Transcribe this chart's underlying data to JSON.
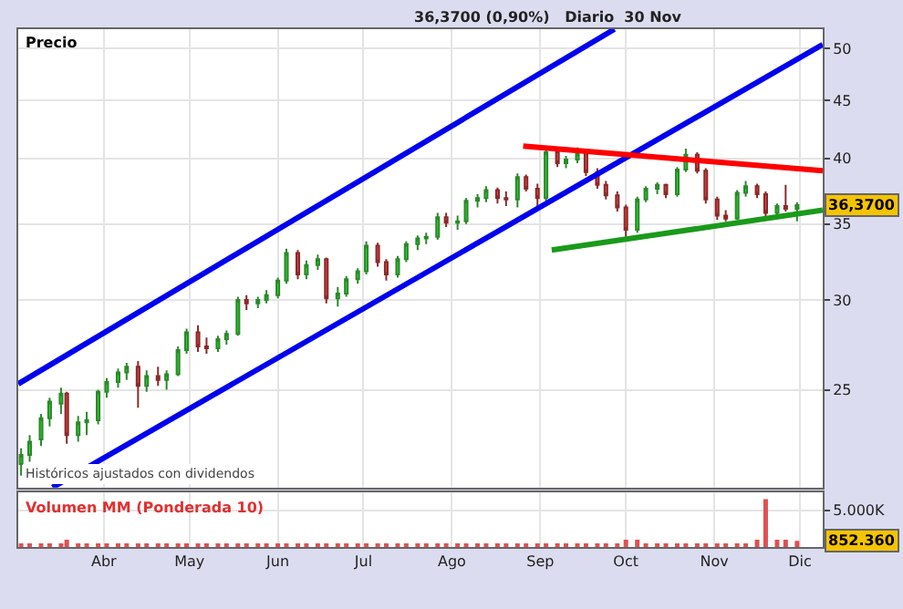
{
  "chart_data": [
    {
      "type": "candlestick",
      "title": "36,3700 (0,90%)   Diario  30 Nov",
      "annotations": [
        "Precio",
        "Históricos ajustados con dividendos",
        {
          "text": "36,3700",
          "y": 36.37
        }
      ],
      "x": [
        "--03-03",
        "--03-06",
        "--03-10",
        "--03-13",
        "--03-17",
        "--03-19",
        "--03-23",
        "--03-26",
        "--03-30",
        "--04-02",
        "--04-06",
        "--04-09",
        "--04-13",
        "--04-16",
        "--04-20",
        "--04-23",
        "--04-27",
        "--04-30",
        "--05-04",
        "--05-07",
        "--05-11",
        "--05-14",
        "--05-18",
        "--05-21",
        "--05-25",
        "--05-28",
        "--06-01",
        "--06-04",
        "--06-08",
        "--06-11",
        "--06-15",
        "--06-18",
        "--06-22",
        "--06-25",
        "--06-29",
        "--07-02",
        "--07-06",
        "--07-09",
        "--07-13",
        "--07-16",
        "--07-20",
        "--07-23",
        "--07-27",
        "--07-30",
        "--08-03",
        "--08-06",
        "--08-10",
        "--08-13",
        "--08-17",
        "--08-20",
        "--08-24",
        "--08-27",
        "--08-31",
        "--09-03",
        "--09-07",
        "--09-10",
        "--09-14",
        "--09-17",
        "--09-21",
        "--09-24",
        "--09-28",
        "--10-01",
        "--10-05",
        "--10-08",
        "--10-12",
        "--10-15",
        "--10-19",
        "--10-22",
        "--10-26",
        "--10-29",
        "--11-02",
        "--11-05",
        "--11-09",
        "--11-12",
        "--11-16",
        "--11-19",
        "--11-23",
        "--11-26",
        "--11-30"
      ],
      "ohlc": [
        [
          21.5,
          22.2,
          21.0,
          21.9
        ],
        [
          21.9,
          22.8,
          21.6,
          22.5
        ],
        [
          22.6,
          23.8,
          22.3,
          23.6
        ],
        [
          23.6,
          24.6,
          23.2,
          24.4
        ],
        [
          24.3,
          25.1,
          23.8,
          24.8
        ],
        [
          24.8,
          24.9,
          22.4,
          22.8
        ],
        [
          22.8,
          23.7,
          22.5,
          23.4
        ],
        [
          23.4,
          23.9,
          22.8,
          23.5
        ],
        [
          23.5,
          25.0,
          23.3,
          24.9
        ],
        [
          24.9,
          25.6,
          24.6,
          25.4
        ],
        [
          25.4,
          26.1,
          25.1,
          25.9
        ],
        [
          25.9,
          26.4,
          25.5,
          26.2
        ],
        [
          26.2,
          26.5,
          24.1,
          25.2
        ],
        [
          25.2,
          26.0,
          24.9,
          25.7
        ],
        [
          25.7,
          26.2,
          25.2,
          25.5
        ],
        [
          25.5,
          26.0,
          25.0,
          25.8
        ],
        [
          25.8,
          27.3,
          25.7,
          27.1
        ],
        [
          27.1,
          28.3,
          26.9,
          28.1
        ],
        [
          28.1,
          28.5,
          27.0,
          27.3
        ],
        [
          27.3,
          27.8,
          26.9,
          27.2
        ],
        [
          27.2,
          27.9,
          27.0,
          27.7
        ],
        [
          27.7,
          28.2,
          27.4,
          28.0
        ],
        [
          28.0,
          30.2,
          27.9,
          30.0
        ],
        [
          30.0,
          30.3,
          29.4,
          29.8
        ],
        [
          29.8,
          30.2,
          29.5,
          30.0
        ],
        [
          30.0,
          30.6,
          29.8,
          30.3
        ],
        [
          30.3,
          31.4,
          30.1,
          31.2
        ],
        [
          31.2,
          33.3,
          31.0,
          33.0
        ],
        [
          33.0,
          33.2,
          31.3,
          31.6
        ],
        [
          31.6,
          32.5,
          31.3,
          32.2
        ],
        [
          32.2,
          32.9,
          31.9,
          32.6
        ],
        [
          32.6,
          32.7,
          29.8,
          30.1
        ],
        [
          30.1,
          30.8,
          29.6,
          30.4
        ],
        [
          30.4,
          31.5,
          30.2,
          31.3
        ],
        [
          31.3,
          32.0,
          31.0,
          31.8
        ],
        [
          31.8,
          33.8,
          31.6,
          33.5
        ],
        [
          33.5,
          33.7,
          32.1,
          32.4
        ],
        [
          32.4,
          32.6,
          31.2,
          31.6
        ],
        [
          31.6,
          32.8,
          31.4,
          32.6
        ],
        [
          32.6,
          33.8,
          32.4,
          33.6
        ],
        [
          33.6,
          34.2,
          33.2,
          34.0
        ],
        [
          34.0,
          34.4,
          33.6,
          34.1
        ],
        [
          34.1,
          35.8,
          33.9,
          35.5
        ],
        [
          35.5,
          35.8,
          34.8,
          35.1
        ],
        [
          35.1,
          35.6,
          34.6,
          35.2
        ],
        [
          35.2,
          36.9,
          35.0,
          36.7
        ],
        [
          36.7,
          37.2,
          36.2,
          36.9
        ],
        [
          36.9,
          37.8,
          36.6,
          37.5
        ],
        [
          37.5,
          37.7,
          36.5,
          36.9
        ],
        [
          36.9,
          37.4,
          36.3,
          36.8
        ],
        [
          36.8,
          38.8,
          36.2,
          38.5
        ],
        [
          38.5,
          38.7,
          37.4,
          37.6
        ],
        [
          37.6,
          38.0,
          36.3,
          36.9
        ],
        [
          36.9,
          40.9,
          36.7,
          40.5
        ],
        [
          40.5,
          40.8,
          39.3,
          39.6
        ],
        [
          39.6,
          40.2,
          39.2,
          39.9
        ],
        [
          39.9,
          40.9,
          39.6,
          40.4
        ],
        [
          40.4,
          40.6,
          38.6,
          38.9
        ],
        [
          38.9,
          39.2,
          37.6,
          37.9
        ],
        [
          37.9,
          38.2,
          36.8,
          37.1
        ],
        [
          37.1,
          37.4,
          35.9,
          36.2
        ],
        [
          36.2,
          36.4,
          34.1,
          34.6
        ],
        [
          34.6,
          37.0,
          34.4,
          36.8
        ],
        [
          36.8,
          37.8,
          36.6,
          37.6
        ],
        [
          37.6,
          38.1,
          37.2,
          37.9
        ],
        [
          37.9,
          38.0,
          36.9,
          37.2
        ],
        [
          37.2,
          39.3,
          37.0,
          39.1
        ],
        [
          39.1,
          40.8,
          38.9,
          40.3
        ],
        [
          40.3,
          40.5,
          38.8,
          39.0
        ],
        [
          39.0,
          39.2,
          36.5,
          36.8
        ],
        [
          36.8,
          37.0,
          35.3,
          35.6
        ],
        [
          35.6,
          36.0,
          35.2,
          35.4
        ],
        [
          35.4,
          37.5,
          35.3,
          37.3
        ],
        [
          37.3,
          38.2,
          37.0,
          37.8
        ],
        [
          37.8,
          38.0,
          36.9,
          37.2
        ],
        [
          37.2,
          37.4,
          35.5,
          35.8
        ],
        [
          35.8,
          36.5,
          35.6,
          36.3
        ],
        [
          36.3,
          37.9,
          35.9,
          36.1
        ],
        [
          36.1,
          36.6,
          35.2,
          36.37
        ]
      ],
      "series": [
        {
          "type": "line",
          "color": "#0000ee",
          "x": [
            "--03-02",
            "--09-27"
          ],
          "values": [
            25.3,
            52.0
          ]
        },
        {
          "type": "line",
          "color": "#0000ee",
          "x": [
            "--03-14",
            "--12-09"
          ],
          "values": [
            20.5,
            50.4
          ]
        },
        {
          "type": "line",
          "color": "#ff0000",
          "x": [
            "--08-26",
            "--12-09"
          ],
          "values": [
            41.0,
            39.0
          ]
        },
        {
          "type": "line",
          "color": "#1a9a1a",
          "x": [
            "--09-05",
            "--12-09"
          ],
          "values": [
            33.2,
            36.0
          ]
        }
      ],
      "xlim": [
        "--03-02",
        "--12-09"
      ],
      "xticks": [
        {
          "value": "--04-01",
          "label": "Abr"
        },
        {
          "value": "--05-01",
          "label": "May"
        },
        {
          "value": "--06-01",
          "label": "Jun"
        },
        {
          "value": "--07-01",
          "label": "Jul"
        },
        {
          "value": "--08-01",
          "label": "Ago"
        },
        {
          "value": "--09-01",
          "label": "Sep"
        },
        {
          "value": "--10-01",
          "label": "Oct"
        },
        {
          "value": "--11-01",
          "label": "Nov"
        },
        {
          "value": "--12-01",
          "label": "Dic"
        }
      ],
      "ylim": [
        20.5,
        52
      ],
      "yticks": [
        25,
        30,
        35,
        40,
        45,
        50
      ],
      "log": true,
      "grid": true,
      "tick_labels": "y"
    },
    {
      "type": "bar",
      "title": "Volumen MM (Ponderada 10)",
      "color": "#e05050",
      "annotations": [
        {
          "text": "852.360",
          "y": 852.36
        }
      ],
      "x": [
        "--03-03",
        "--03-06",
        "--03-10",
        "--03-13",
        "--03-17",
        "--03-19",
        "--03-23",
        "--03-26",
        "--03-30",
        "--04-02",
        "--04-06",
        "--04-09",
        "--04-13",
        "--04-16",
        "--04-20",
        "--04-23",
        "--04-27",
        "--04-30",
        "--05-04",
        "--05-07",
        "--05-11",
        "--05-14",
        "--05-18",
        "--05-21",
        "--05-25",
        "--05-28",
        "--06-01",
        "--06-04",
        "--06-08",
        "--06-11",
        "--06-15",
        "--06-18",
        "--06-22",
        "--06-25",
        "--06-29",
        "--07-02",
        "--07-06",
        "--07-09",
        "--07-13",
        "--07-16",
        "--07-20",
        "--07-23",
        "--07-27",
        "--07-30",
        "--08-03",
        "--08-06",
        "--08-10",
        "--08-13",
        "--08-17",
        "--08-20",
        "--08-24",
        "--08-27",
        "--08-31",
        "--09-03",
        "--09-07",
        "--09-10",
        "--09-14",
        "--09-17",
        "--09-21",
        "--09-24",
        "--09-28",
        "--10-01",
        "--10-05",
        "--10-08",
        "--10-12",
        "--10-15",
        "--10-19",
        "--10-22",
        "--10-26",
        "--10-29",
        "--11-02",
        "--11-05",
        "--11-09",
        "--11-12",
        "--11-16",
        "--11-19",
        "--11-23",
        "--11-26",
        "--11-30"
      ],
      "values": [
        500,
        500,
        500,
        500,
        500,
        1000,
        500,
        500,
        500,
        500,
        500,
        500,
        500,
        500,
        500,
        500,
        500,
        500,
        500,
        500,
        500,
        500,
        500,
        500,
        500,
        500,
        500,
        500,
        500,
        500,
        500,
        500,
        500,
        500,
        500,
        500,
        500,
        500,
        500,
        500,
        500,
        500,
        500,
        500,
        500,
        500,
        500,
        500,
        500,
        500,
        500,
        500,
        500,
        500,
        500,
        500,
        500,
        500,
        500,
        500,
        500,
        1000,
        1000,
        500,
        500,
        500,
        500,
        500,
        500,
        500,
        500,
        500,
        500,
        500,
        1000,
        6500,
        1000,
        1000,
        852.36
      ],
      "xlim": [
        "--03-02",
        "--12-09"
      ],
      "xticks": [
        {
          "value": "--04-01",
          "label": "Abr"
        },
        {
          "value": "--05-01",
          "label": "May"
        },
        {
          "value": "--06-01",
          "label": "Jun"
        },
        {
          "value": "--07-01",
          "label": "Jul"
        },
        {
          "value": "--08-01",
          "label": "Ago"
        },
        {
          "value": "--09-01",
          "label": "Sep"
        },
        {
          "value": "--10-01",
          "label": "Oct"
        },
        {
          "value": "--11-01",
          "label": "Nov"
        },
        {
          "value": "--12-01",
          "label": "Dic"
        }
      ],
      "ylim": [
        0,
        7400
      ],
      "yticks": [
        {
          "value": 5000,
          "label": "5.000K"
        }
      ],
      "grid": true
    }
  ]
}
